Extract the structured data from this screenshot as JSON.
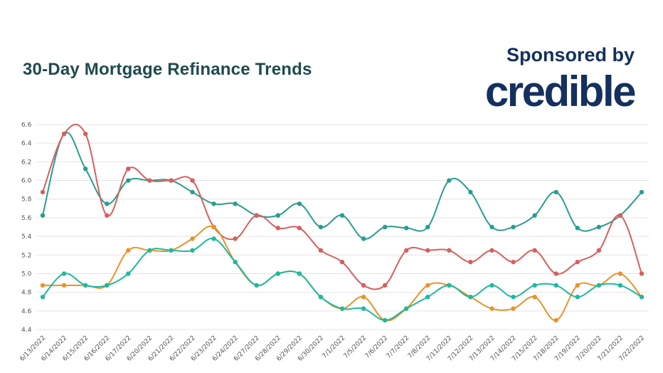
{
  "header": {
    "title": "30-Day Mortgage Refinance Trends",
    "sponsor_label": "Sponsored by",
    "brand": "credible"
  },
  "chart_data": {
    "type": "line",
    "ylim": [
      4.4,
      6.6
    ],
    "y_ticks": [
      "4.4",
      "4.6",
      "4.8",
      "5.0",
      "5.2",
      "5.4",
      "5.6",
      "5.8",
      "6.0",
      "6.2",
      "6.4",
      "6.6"
    ],
    "grid": true,
    "categories": [
      "6/13/2022",
      "6/14/2022",
      "6/15/2022",
      "6/16/2022",
      "6/17/2022",
      "6/20/2022",
      "6/21/2022",
      "6/22/2022",
      "6/23/2022",
      "6/24/2022",
      "6/27/2022",
      "6/28/2022",
      "6/29/2022",
      "6/30/2022",
      "7/1/2022",
      "7/5/2022",
      "7/6/2022",
      "7/7/2022",
      "7/8/2022",
      "7/11/2022",
      "7/12/2022",
      "7/13/2022",
      "7/14/2022",
      "7/15/2022",
      "7/18/2022",
      "7/19/2022",
      "7/20/2022",
      "7/21/2022",
      "7/22/2022"
    ],
    "series": [
      {
        "color": "#2a9d8f",
        "values": [
          5.625,
          6.5,
          6.125,
          5.75,
          6.0,
          6.0,
          6.0,
          5.875,
          5.75,
          5.75,
          5.625,
          5.625,
          5.75,
          5.5,
          5.625,
          5.375,
          5.5,
          5.49,
          5.5,
          6.0,
          5.875,
          5.5,
          5.5,
          5.625,
          5.875,
          5.49,
          5.5,
          5.625,
          5.875
        ]
      },
      {
        "color": "#d65f5f",
        "values": [
          5.875,
          6.5,
          6.5,
          5.625,
          6.125,
          6.0,
          6.0,
          6.0,
          5.5,
          5.375,
          5.625,
          5.49,
          5.49,
          5.25,
          5.125,
          4.875,
          4.875,
          5.25,
          5.25,
          5.25,
          5.125,
          5.25,
          5.125,
          5.25,
          5.0,
          5.125,
          5.25,
          5.625,
          5.0
        ]
      },
      {
        "color": "#e8932a",
        "values": [
          4.875,
          4.875,
          4.875,
          4.875,
          5.25,
          5.25,
          5.25,
          5.375,
          5.5,
          5.125,
          4.875,
          5.0,
          5.0,
          4.75,
          4.625,
          4.75,
          4.5,
          4.625,
          4.875,
          4.875,
          4.75,
          4.625,
          4.625,
          4.75,
          4.5,
          4.875,
          4.875,
          5.0,
          4.75
        ]
      },
      {
        "color": "#20b8a0",
        "values": [
          4.75,
          5.0,
          4.875,
          4.875,
          5.0,
          5.25,
          5.25,
          5.25,
          5.375,
          5.125,
          4.875,
          5.0,
          5.0,
          4.75,
          4.625,
          4.625,
          4.5,
          4.625,
          4.75,
          4.875,
          4.75,
          4.875,
          4.75,
          4.875,
          4.875,
          4.75,
          4.875,
          4.875,
          4.75
        ]
      }
    ]
  }
}
